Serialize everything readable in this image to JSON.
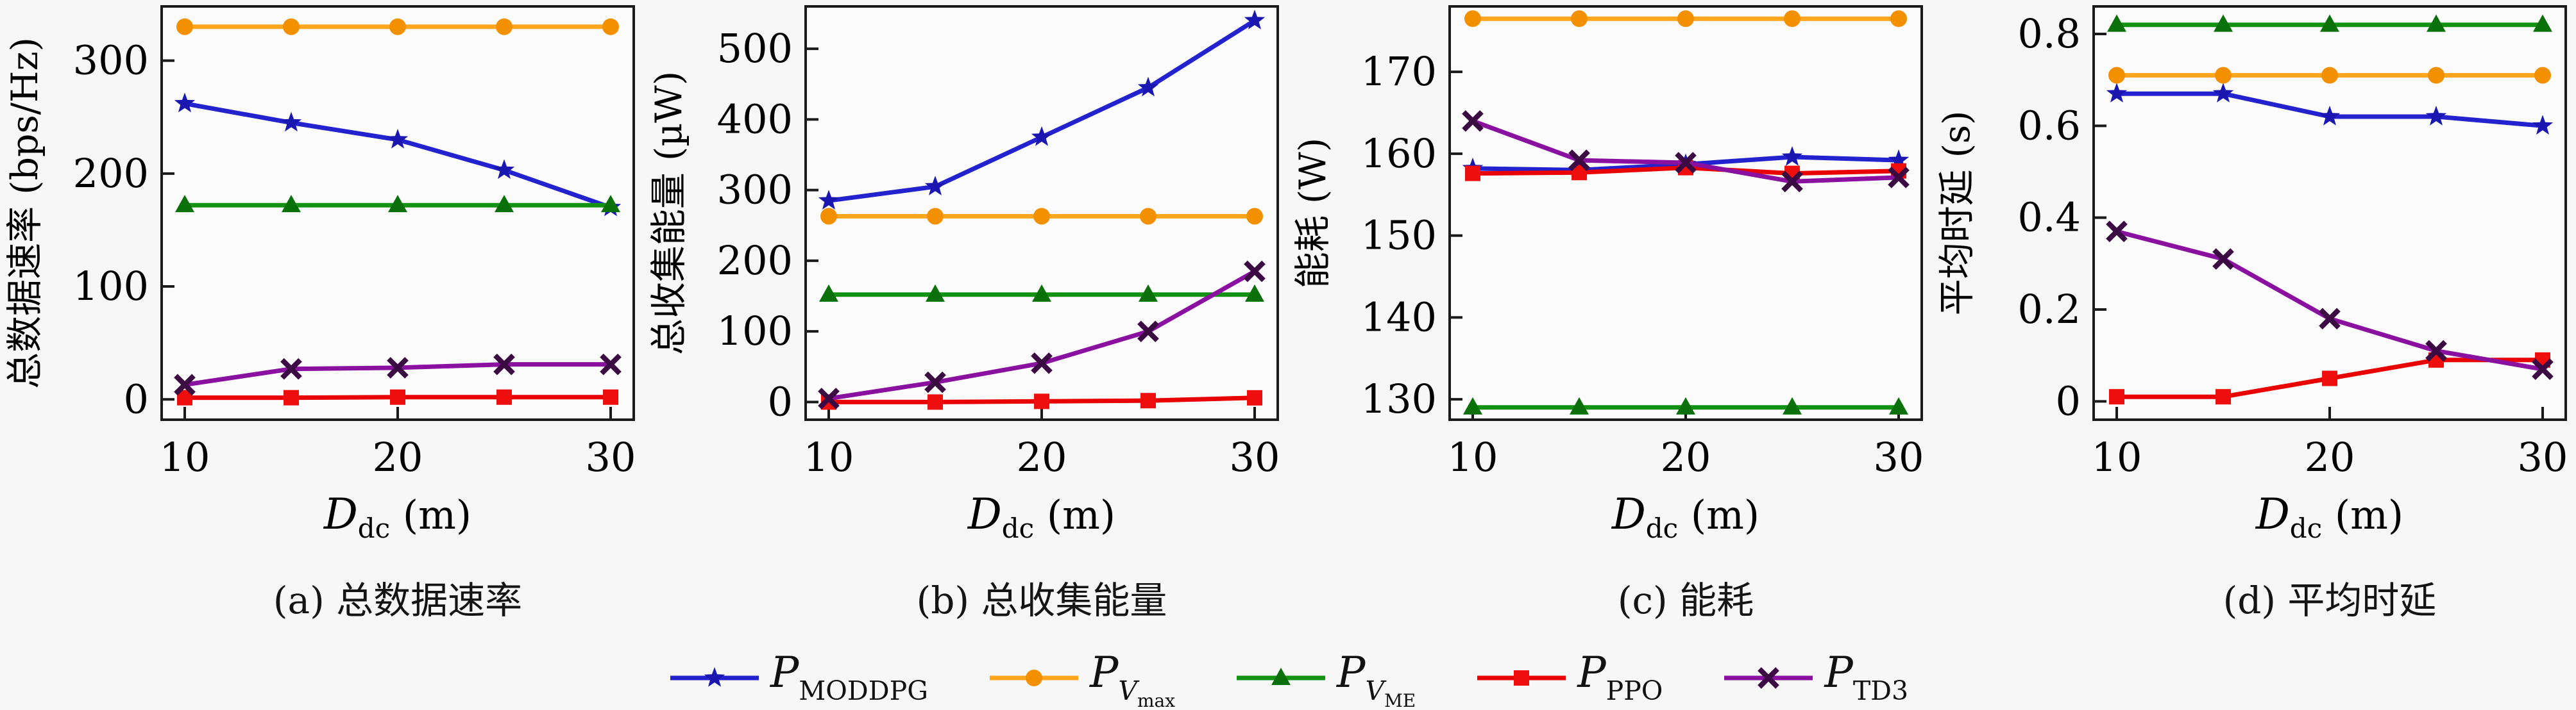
{
  "figure": {
    "background": "#f7f7f7",
    "plot_background": "#fbfbfb",
    "axis_color": "#1a1a1a",
    "xlabel": {
      "main": "D",
      "sub": "dc",
      "unit": "(m)",
      "full": "D_dc (m)"
    }
  },
  "legend": {
    "position": "bottom-center",
    "items": [
      {
        "main": "P",
        "sub": "MODDPG",
        "color": "#2222ce",
        "marker_color": "#1a17b0",
        "marker": "star"
      },
      {
        "main": "P",
        "sub": "V",
        "subsub": "max",
        "color": "#ffa51e",
        "marker_color": "#f29000",
        "marker": "circle"
      },
      {
        "main": "P",
        "sub": "V",
        "subsub": "ME",
        "color": "#129112",
        "marker_color": "#0a700a",
        "marker": "triangle"
      },
      {
        "main": "P",
        "sub": "PPO",
        "color": "#e80202",
        "marker_color": "#ee0e0e",
        "marker": "square"
      },
      {
        "main": "P",
        "sub": "TD3",
        "color": "#8a10a0",
        "marker_color": "#3c0a42",
        "marker": "xcross"
      }
    ]
  },
  "chart_data": [
    {
      "type": "line",
      "caption": "(a) 总数据速率",
      "ylabel": "总数据速率 (bps/Hz)",
      "xlabel": "D_dc (m)",
      "x": [
        10,
        15,
        20,
        25,
        30
      ],
      "xticks": [
        10,
        20,
        30
      ],
      "yticks": [
        0,
        100,
        200,
        300
      ],
      "ylim": [
        -18,
        348
      ],
      "xlim": [
        10,
        30
      ],
      "grid": false,
      "series": [
        {
          "name": "P_MODDPG",
          "values": [
            262,
            245,
            230,
            203,
            170
          ]
        },
        {
          "name": "P_Vmax",
          "values": [
            330,
            330,
            330,
            330,
            330
          ]
        },
        {
          "name": "P_VME",
          "values": [
            172,
            172,
            172,
            172,
            172
          ]
        },
        {
          "name": "P_PPO",
          "values": [
            1.5,
            1.5,
            2,
            2,
            2
          ]
        },
        {
          "name": "P_TD3",
          "values": [
            13,
            27,
            28,
            31,
            31
          ]
        }
      ]
    },
    {
      "type": "line",
      "caption": "(b) 总收集能量",
      "ylabel": "总收集能量 (µW)",
      "xlabel": "D_dc (m)",
      "x": [
        10,
        15,
        20,
        25,
        30
      ],
      "xticks": [
        10,
        20,
        30
      ],
      "yticks": [
        0,
        100,
        200,
        300,
        400,
        500
      ],
      "ylim": [
        -25,
        560
      ],
      "xlim": [
        10,
        30
      ],
      "grid": false,
      "series": [
        {
          "name": "P_MODDPG",
          "values": [
            285,
            305,
            375,
            445,
            540
          ]
        },
        {
          "name": "P_Vmax",
          "values": [
            263,
            263,
            263,
            263,
            263
          ]
        },
        {
          "name": "P_VME",
          "values": [
            152,
            152,
            152,
            152,
            152
          ]
        },
        {
          "name": "P_PPO",
          "values": [
            0,
            0,
            1,
            2,
            6
          ]
        },
        {
          "name": "P_TD3",
          "values": [
            5,
            28,
            55,
            100,
            185
          ]
        }
      ]
    },
    {
      "type": "line",
      "caption": "(c) 能耗",
      "ylabel": "能耗 (W)",
      "xlabel": "D_dc (m)",
      "x": [
        10,
        15,
        20,
        25,
        30
      ],
      "xticks": [
        10,
        20,
        30
      ],
      "yticks": [
        130,
        140,
        150,
        160,
        170
      ],
      "ylim": [
        127.5,
        178
      ],
      "xlim": [
        10,
        30
      ],
      "grid": false,
      "series": [
        {
          "name": "P_MODDPG",
          "values": [
            158.2,
            158.0,
            158.7,
            159.6,
            159.2
          ]
        },
        {
          "name": "P_Vmax",
          "values": [
            176.5,
            176.5,
            176.5,
            176.5,
            176.5
          ]
        },
        {
          "name": "P_VME",
          "values": [
            129,
            129,
            129,
            129,
            129
          ]
        },
        {
          "name": "P_PPO",
          "values": [
            157.6,
            157.7,
            158.3,
            157.6,
            157.9
          ]
        },
        {
          "name": "P_TD3",
          "values": [
            164,
            159.2,
            158.9,
            156.6,
            157.1
          ]
        }
      ]
    },
    {
      "type": "line",
      "caption": "(d) 平均时延",
      "ylabel": "平均时延 (s)",
      "xlabel": "D_dc (m)",
      "x": [
        10,
        15,
        20,
        25,
        30
      ],
      "xticks": [
        10,
        20,
        30
      ],
      "yticks": [
        0,
        0.2,
        0.4,
        0.6,
        0.8
      ],
      "ylim": [
        -0.04,
        0.86
      ],
      "xlim": [
        10,
        30
      ],
      "grid": false,
      "series": [
        {
          "name": "P_MODDPG",
          "values": [
            0.67,
            0.67,
            0.62,
            0.62,
            0.6
          ]
        },
        {
          "name": "P_Vmax",
          "values": [
            0.71,
            0.71,
            0.71,
            0.71,
            0.71
          ]
        },
        {
          "name": "P_VME",
          "values": [
            0.82,
            0.82,
            0.82,
            0.82,
            0.82
          ]
        },
        {
          "name": "P_PPO",
          "values": [
            0.01,
            0.01,
            0.05,
            0.09,
            0.09
          ]
        },
        {
          "name": "P_TD3",
          "values": [
            0.37,
            0.31,
            0.18,
            0.11,
            0.07
          ]
        }
      ]
    }
  ]
}
